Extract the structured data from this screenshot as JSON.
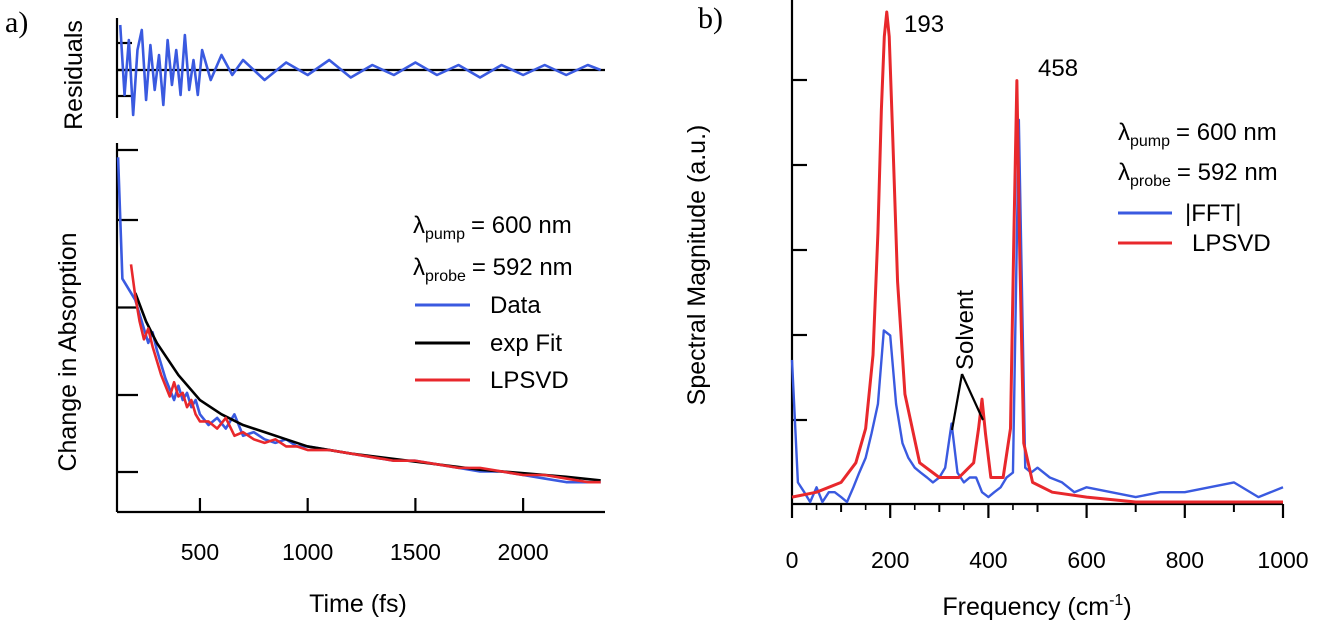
{
  "colors": {
    "data": "#3a5ae0",
    "fit": "#000000",
    "lpsvd": "#e8282c",
    "axis": "#000000"
  },
  "chart_data": [
    {
      "panel": "a)",
      "type": "line",
      "xlabel": "Time (fs)",
      "ylabel": "Change in Absorption",
      "residual_label": "Residuals",
      "x_ticks": [
        500,
        1000,
        1500,
        2000
      ],
      "xlim": [
        115,
        2380
      ],
      "ylim": [
        0.0,
        1.0
      ],
      "residual_ylim": [
        -1.0,
        1.0
      ],
      "legend": {
        "position": "right",
        "pump_sym": "λ",
        "pump_sub": "pump",
        "pump_val": "= 600 nm",
        "probe_sym": "λ",
        "probe_sub": "probe",
        "probe_val": "= 592 nm",
        "entries": [
          {
            "name": "Data",
            "color": "#3a5ae0"
          },
          {
            "name": "exp Fit",
            "color": "#000000"
          },
          {
            "name": "LPSVD",
            "color": "#e8282c"
          }
        ]
      },
      "series": [
        {
          "name": "Data",
          "x": [
            120,
            140,
            160,
            180,
            200,
            220,
            240,
            260,
            280,
            300,
            320,
            340,
            360,
            380,
            400,
            420,
            440,
            460,
            480,
            500,
            540,
            580,
            620,
            660,
            700,
            750,
            800,
            850,
            900,
            950,
            1000,
            1100,
            1200,
            1300,
            1400,
            1500,
            1600,
            1700,
            1800,
            1900,
            2000,
            2100,
            2200,
            2300,
            2360
          ],
          "y": [
            0.96,
            0.62,
            0.6,
            0.58,
            0.56,
            0.52,
            0.48,
            0.44,
            0.47,
            0.42,
            0.38,
            0.34,
            0.31,
            0.28,
            0.32,
            0.28,
            0.3,
            0.26,
            0.28,
            0.24,
            0.21,
            0.23,
            0.2,
            0.24,
            0.18,
            0.19,
            0.17,
            0.16,
            0.17,
            0.15,
            0.15,
            0.14,
            0.13,
            0.12,
            0.11,
            0.11,
            0.1,
            0.09,
            0.08,
            0.08,
            0.07,
            0.06,
            0.05,
            0.05,
            0.05
          ]
        },
        {
          "name": "exp Fit",
          "x": [
            200,
            250,
            300,
            400,
            500,
            600,
            700,
            800,
            900,
            1000,
            1200,
            1400,
            1600,
            1800,
            2000,
            2200,
            2360
          ],
          "y": [
            0.58,
            0.5,
            0.44,
            0.35,
            0.28,
            0.24,
            0.21,
            0.19,
            0.17,
            0.15,
            0.13,
            0.115,
            0.1,
            0.085,
            0.075,
            0.065,
            0.055
          ]
        },
        {
          "name": "LPSVD",
          "x": [
            180,
            200,
            220,
            240,
            260,
            280,
            300,
            320,
            340,
            360,
            380,
            400,
            420,
            440,
            460,
            480,
            500,
            540,
            580,
            620,
            660,
            700,
            750,
            800,
            850,
            900,
            950,
            1000,
            1100,
            1200,
            1300,
            1400,
            1500,
            1600,
            1700,
            1800,
            1900,
            2000,
            2100,
            2200,
            2300,
            2360
          ],
          "y": [
            0.66,
            0.57,
            0.5,
            0.45,
            0.48,
            0.43,
            0.39,
            0.35,
            0.32,
            0.29,
            0.33,
            0.29,
            0.3,
            0.26,
            0.28,
            0.24,
            0.22,
            0.22,
            0.2,
            0.23,
            0.18,
            0.19,
            0.17,
            0.16,
            0.17,
            0.15,
            0.15,
            0.14,
            0.14,
            0.13,
            0.12,
            0.11,
            0.11,
            0.1,
            0.09,
            0.09,
            0.08,
            0.07,
            0.07,
            0.06,
            0.05,
            0.05
          ]
        },
        {
          "name": "Residuals",
          "x": [
            130,
            150,
            170,
            190,
            210,
            230,
            250,
            270,
            290,
            310,
            330,
            350,
            370,
            390,
            410,
            430,
            450,
            470,
            490,
            510,
            550,
            600,
            650,
            700,
            800,
            900,
            1000,
            1100,
            1200,
            1300,
            1400,
            1500,
            1600,
            1700,
            1800,
            1900,
            2000,
            2100,
            2200,
            2300,
            2360
          ],
          "y": [
            0.9,
            -0.5,
            0.6,
            -0.9,
            0.4,
            0.8,
            -0.6,
            0.5,
            -0.4,
            0.3,
            -0.7,
            0.6,
            -0.3,
            0.4,
            -0.5,
            0.7,
            -0.4,
            0.2,
            -0.5,
            0.4,
            -0.2,
            0.3,
            -0.1,
            0.2,
            -0.2,
            0.15,
            -0.1,
            0.2,
            -0.15,
            0.1,
            -0.1,
            0.15,
            -0.1,
            0.1,
            -0.15,
            0.1,
            -0.1,
            0.1,
            -0.1,
            0.1,
            0.0
          ]
        }
      ]
    },
    {
      "panel": "b)",
      "type": "line",
      "xlabel": "Frequency (cm⁻¹)",
      "ylabel": "Spectral Magnitude (a.u.)",
      "x_ticks": [
        0,
        200,
        400,
        600,
        800,
        1000
      ],
      "xlim": [
        -5,
        1000
      ],
      "ylim": [
        0.0,
        1.0
      ],
      "annotations": [
        {
          "text": "193",
          "x": 193,
          "y": 1.0
        },
        {
          "text": "458",
          "x": 458,
          "y": 0.86
        },
        {
          "text": "Solvent",
          "x": 320,
          "y": 0.22
        }
      ],
      "legend": {
        "position": "right",
        "pump_sym": "λ",
        "pump_sub": "pump",
        "pump_val": "= 600 nm",
        "probe_sym": "λ",
        "probe_sub": "probe",
        "probe_val": "= 592 nm",
        "entries": [
          {
            "name": "|FFT|",
            "color": "#3a5ae0"
          },
          {
            "name": "LPSVD",
            "color": "#e8282c"
          }
        ]
      },
      "series": [
        {
          "name": "|FFT|",
          "x": [
            0,
            12,
            25,
            37,
            50,
            62,
            75,
            87,
            100,
            112,
            125,
            137,
            150,
            162,
            175,
            187,
            200,
            212,
            225,
            237,
            250,
            262,
            275,
            287,
            300,
            312,
            325,
            337,
            350,
            362,
            375,
            387,
            400,
            412,
            425,
            437,
            450,
            462,
            475,
            487,
            500,
            525,
            550,
            575,
            600,
            650,
            700,
            750,
            800,
            850,
            900,
            950,
            1000
          ],
          "y": [
            0.29,
            0.04,
            0.02,
            0.0,
            0.03,
            0.0,
            0.02,
            0.02,
            0.01,
            0.0,
            0.03,
            0.06,
            0.09,
            0.14,
            0.2,
            0.35,
            0.34,
            0.2,
            0.12,
            0.09,
            0.07,
            0.06,
            0.05,
            0.04,
            0.05,
            0.07,
            0.16,
            0.06,
            0.04,
            0.05,
            0.05,
            0.02,
            0.01,
            0.02,
            0.03,
            0.05,
            0.06,
            0.78,
            0.07,
            0.06,
            0.07,
            0.05,
            0.04,
            0.02,
            0.03,
            0.02,
            0.01,
            0.02,
            0.02,
            0.03,
            0.04,
            0.01,
            0.03
          ]
        },
        {
          "name": "LPSVD",
          "x": [
            0,
            50,
            100,
            130,
            150,
            165,
            175,
            182,
            188,
            193,
            198,
            205,
            215,
            230,
            260,
            300,
            340,
            370,
            380,
            387,
            394,
            405,
            430,
            445,
            452,
            458,
            464,
            472,
            490,
            530,
            600,
            700,
            800,
            1000
          ],
          "y": [
            0.01,
            0.02,
            0.04,
            0.08,
            0.15,
            0.3,
            0.55,
            0.8,
            0.95,
            1.0,
            0.95,
            0.75,
            0.45,
            0.22,
            0.08,
            0.05,
            0.05,
            0.08,
            0.15,
            0.21,
            0.14,
            0.05,
            0.05,
            0.15,
            0.55,
            0.86,
            0.5,
            0.12,
            0.04,
            0.02,
            0.01,
            0.0,
            0.0,
            0.0
          ]
        }
      ]
    }
  ]
}
